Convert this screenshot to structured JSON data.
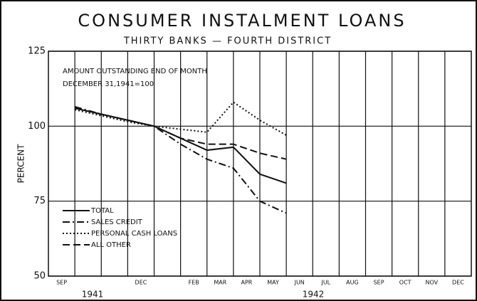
{
  "chart_data": {
    "type": "line",
    "title": "CONSUMER INSTALMENT LOANS",
    "subtitle": "THIRTY BANKS — FOURTH DISTRICT",
    "annotations": [
      "AMOUNT OUTSTANDING END OF MONTH",
      "DECEMBER 31,1941=100"
    ],
    "ylabel": "PERCENT",
    "categories": [
      "SEP",
      null,
      null,
      "DEC",
      null,
      "FEB",
      "MAR",
      "APR",
      "MAY",
      "JUN",
      "JUL",
      "AUG",
      "SEP",
      "OCT",
      "NOV",
      "DEC"
    ],
    "year_labels": [
      "1941",
      "1942"
    ],
    "ylim": [
      50,
      125
    ],
    "yticks": [
      50,
      75,
      100,
      125
    ],
    "grid": true,
    "legend": "lower left",
    "series": [
      {
        "name": "TOTAL",
        "color": "#111",
        "dash": "solid",
        "values": [
          106,
          104,
          102,
          100,
          96,
          92,
          93,
          84,
          81,
          null,
          null,
          null,
          null,
          null,
          null,
          null
        ]
      },
      {
        "name": "SALES CREDIT",
        "color": "#111",
        "dash": "dashdot",
        "values": [
          106.5,
          104,
          102,
          100,
          94,
          89,
          86,
          75,
          71,
          null,
          null,
          null,
          null,
          null,
          null,
          null
        ]
      },
      {
        "name": "PERSONAL CASH LOANS",
        "color": "#111",
        "dash": "dotted",
        "values": [
          105.5,
          103.5,
          101.5,
          100,
          99,
          98,
          108,
          102,
          97,
          null,
          null,
          null,
          null,
          null,
          null,
          null
        ]
      },
      {
        "name": "ALL OTHER",
        "color": "#111",
        "dash": "dashed",
        "values": [
          106,
          104,
          102,
          100,
          96,
          94,
          94,
          91,
          89,
          null,
          null,
          null,
          null,
          null,
          null,
          null
        ]
      }
    ]
  }
}
